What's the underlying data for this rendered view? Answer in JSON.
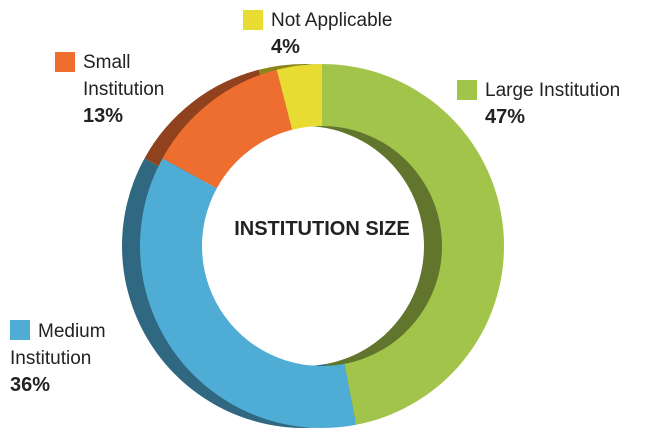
{
  "chart_data": {
    "type": "pie",
    "title": "INSTITUTION SIZE",
    "categories": [
      "Large Institution",
      "Medium Institution",
      "Small Institution",
      "Not Applicable"
    ],
    "values": [
      47,
      36,
      13,
      4
    ],
    "value_labels": [
      "47%",
      "36%",
      "13%",
      "4%"
    ],
    "colors": [
      "#a2c44a",
      "#4fadd5",
      "#ee6e30",
      "#e8dc32"
    ]
  }
}
